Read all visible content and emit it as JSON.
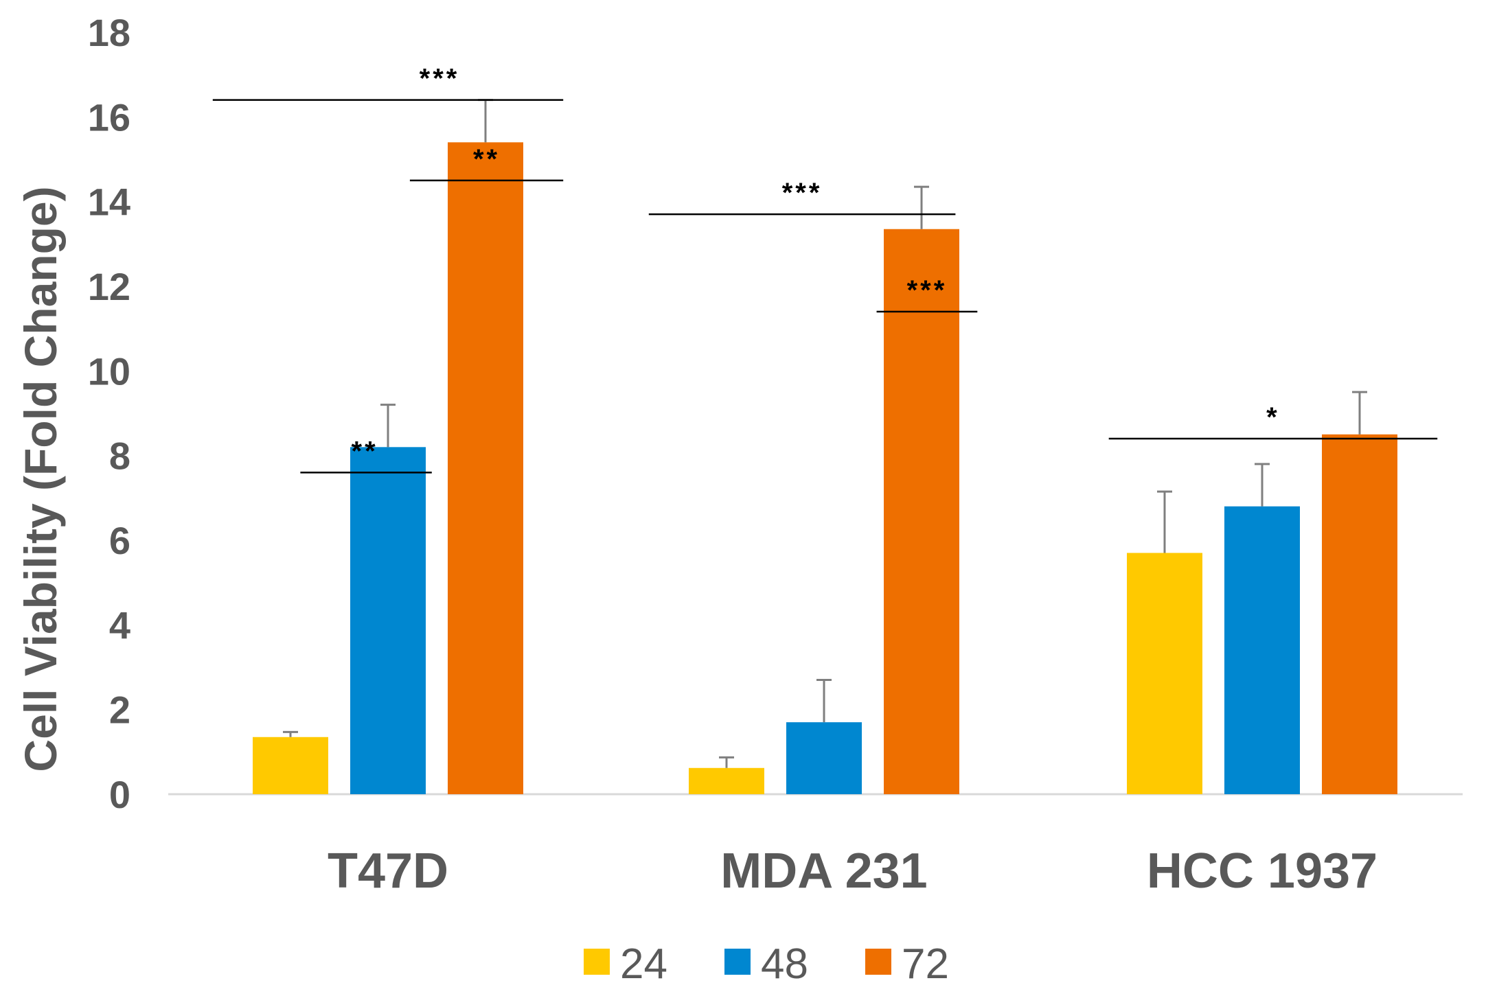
{
  "chart_data": {
    "type": "bar",
    "title": "",
    "xlabel": "",
    "ylabel": "Cell Viability (Fold Change)",
    "ylim": [
      0,
      18
    ],
    "yticks": [
      0,
      2,
      4,
      6,
      8,
      10,
      12,
      14,
      16,
      18
    ],
    "grid": false,
    "legend_position": "bottom",
    "categories": [
      "T47D",
      "MDA 231",
      "HCC 1937"
    ],
    "series": [
      {
        "name": "24",
        "color": "#FFC900",
        "values": [
          1.35,
          0.62,
          5.7
        ],
        "errors": [
          0.12,
          0.25,
          1.45
        ]
      },
      {
        "name": "48",
        "color": "#0087D0",
        "values": [
          8.2,
          1.7,
          6.8
        ],
        "errors": [
          1.0,
          1.0,
          1.0
        ]
      },
      {
        "name": "72",
        "color": "#EE6F00",
        "values": [
          15.4,
          13.35,
          8.5
        ],
        "errors": [
          1.0,
          1.0,
          1.0
        ]
      }
    ],
    "significance": [
      {
        "label": "***",
        "category": 0,
        "from": -0.4,
        "to": 0.4,
        "y": 16.4
      },
      {
        "label": "**",
        "category": 0,
        "from": 0.05,
        "to": 0.4,
        "y": 14.5
      },
      {
        "label": "**",
        "category": 0,
        "from": -0.2,
        "to": 0.1,
        "y": 7.6
      },
      {
        "label": "***",
        "category": 1,
        "from": -0.4,
        "to": 0.3,
        "y": 13.7
      },
      {
        "label": "***",
        "category": 1,
        "from": 0.12,
        "to": 0.35,
        "y": 11.4
      },
      {
        "label": "*",
        "category": 2,
        "from": -0.35,
        "to": 0.4,
        "y": 8.4
      }
    ]
  }
}
